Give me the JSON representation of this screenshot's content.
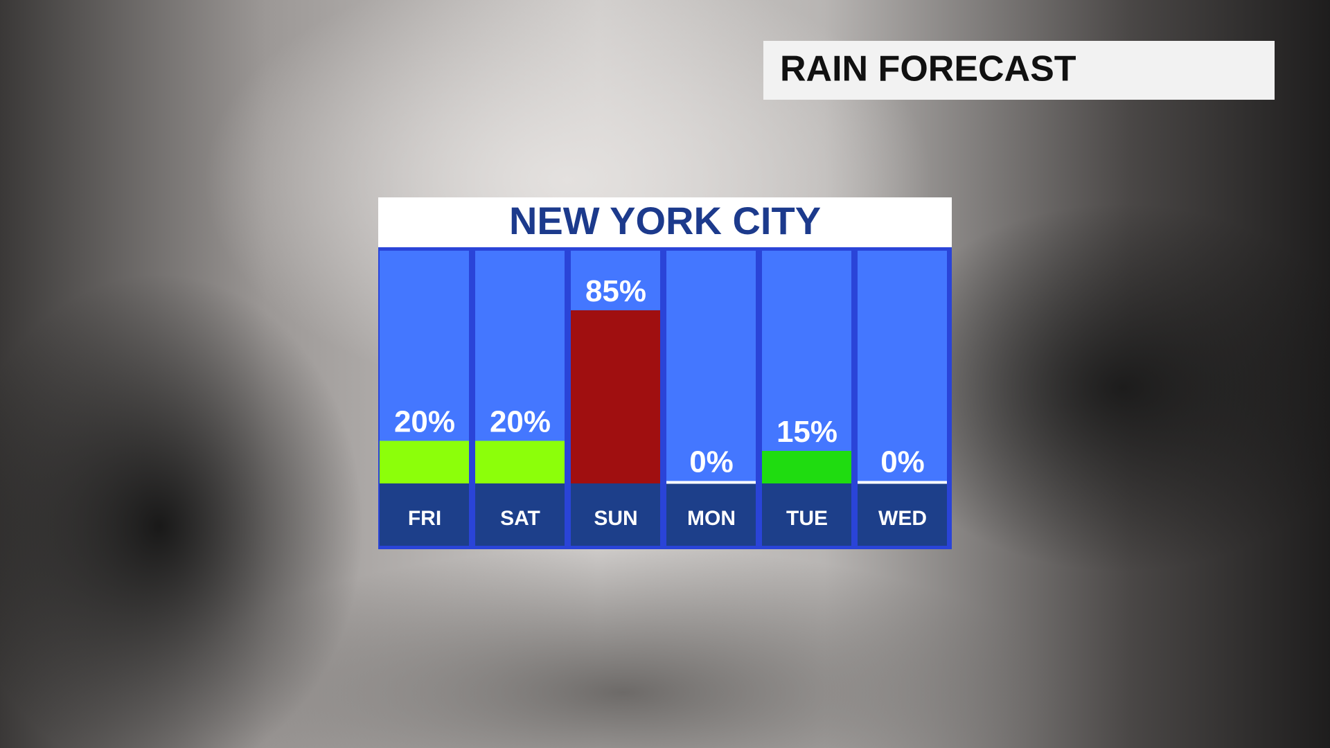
{
  "header": {
    "title": "RAIN FORECAST"
  },
  "chart_data": {
    "type": "bar",
    "title": "NEW YORK CITY",
    "categories": [
      "FRI",
      "SAT",
      "SUN",
      "MON",
      "TUE",
      "WED"
    ],
    "values": [
      20,
      20,
      85,
      0,
      15,
      0
    ],
    "value_labels": [
      "20%",
      "20%",
      "85%",
      "0%",
      "15%",
      "0%"
    ],
    "colors": [
      "#8cff0a",
      "#8cff0a",
      "#a00f10",
      "#ffffff",
      "#1fdc10",
      "#ffffff"
    ]
  }
}
